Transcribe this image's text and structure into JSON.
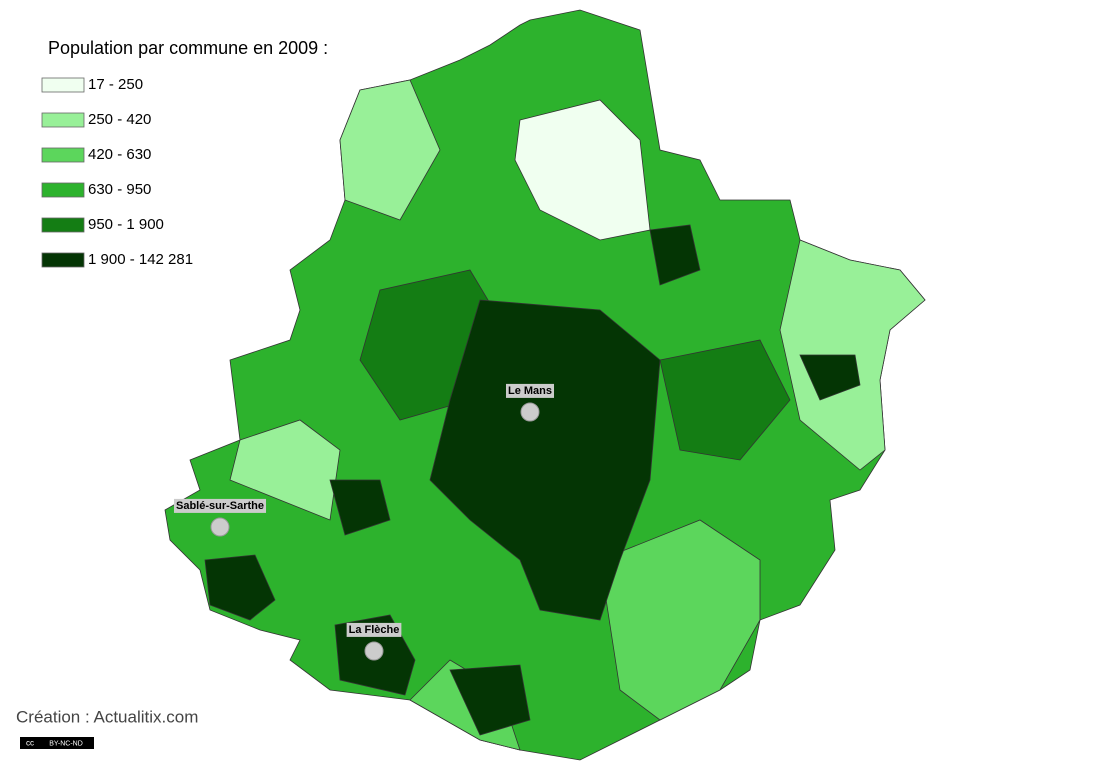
{
  "legend": {
    "title": "Population par commune en 2009 :",
    "items": [
      {
        "label": "17 - 250",
        "color": "#f0fff0"
      },
      {
        "label": "250 - 420",
        "color": "#98f098"
      },
      {
        "label": "420 - 630",
        "color": "#5cd65c"
      },
      {
        "label": "630 - 950",
        "color": "#2db22d"
      },
      {
        "label": "950 - 1 900",
        "color": "#147d14"
      },
      {
        "label": "1 900 - 142 281",
        "color": "#043504"
      }
    ]
  },
  "cities": [
    {
      "name": "Le Mans",
      "x": 530,
      "y": 412
    },
    {
      "name": "Sablé-sur-Sarthe",
      "x": 220,
      "y": 527
    },
    {
      "name": "La Flèche",
      "x": 374,
      "y": 651
    }
  ],
  "credit": "Création : Actualitix.com",
  "license": {
    "cc": "cc",
    "terms": "BY-NC-ND"
  }
}
